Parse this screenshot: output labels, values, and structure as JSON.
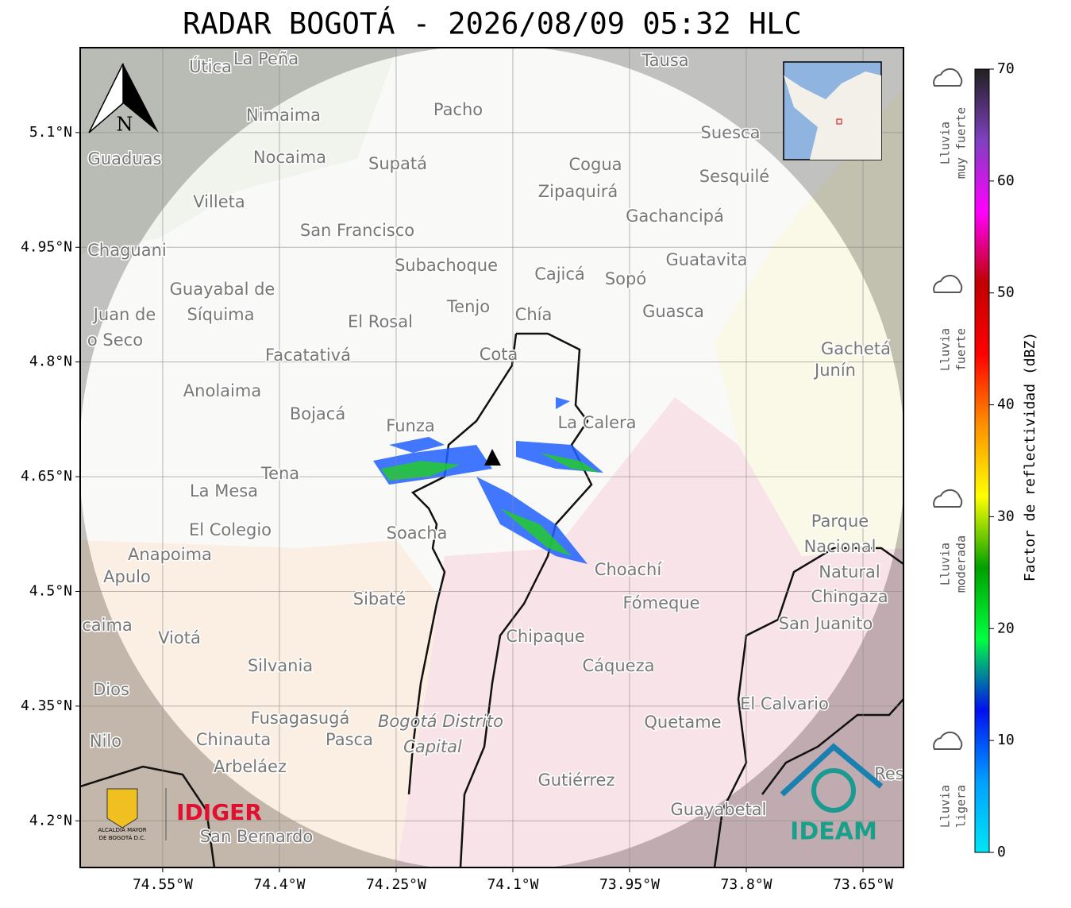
{
  "title": "RADAR BOGOTÁ - 2026/08/09 05:32 HLC",
  "map": {
    "xlim": [
      -74.656,
      -73.598
    ],
    "ylim": [
      4.139,
      5.211
    ],
    "xticks": [
      {
        "value": -74.55,
        "label": "74.55°W"
      },
      {
        "value": -74.4,
        "label": "74.4°W"
      },
      {
        "value": -74.25,
        "label": "74.25°W"
      },
      {
        "value": -74.1,
        "label": "74.1°W"
      },
      {
        "value": -73.95,
        "label": "73.95°W"
      },
      {
        "value": -73.8,
        "label": "73.8°W"
      },
      {
        "value": -73.65,
        "label": "73.65°W"
      }
    ],
    "yticks": [
      {
        "value": 5.1,
        "label": "5.1°N"
      },
      {
        "value": 4.95,
        "label": "4.95°N"
      },
      {
        "value": 4.8,
        "label": "4.8°N"
      },
      {
        "value": 4.65,
        "label": "4.65°N"
      },
      {
        "value": 4.5,
        "label": "4.5°N"
      },
      {
        "value": 4.35,
        "label": "4.35°N"
      },
      {
        "value": 4.2,
        "label": "4.2°N"
      }
    ],
    "grid": true,
    "places": [
      "Útica",
      "La Peña",
      "Tausa",
      "Pacho",
      "Nimaima",
      "Guaduas",
      "Nocaima",
      "Supatá",
      "Cogua",
      "Suesca",
      "Sesquilé",
      "Zipaquirá",
      "Villeta",
      "Gachancipá",
      "San Francisco",
      "Chaguani",
      "Guatavita",
      "Subachoque",
      "Cajicá",
      "Sopó",
      "Guayabal de",
      "Síquima",
      "Juan de",
      "o Seco",
      "Tenjo",
      "Guasca",
      "Chía",
      "El Rosal",
      "Gachetá",
      "Junín",
      "Facatativá",
      "Cota",
      "Anolaima",
      "Bojacá",
      "Funza",
      "La Calera",
      "Tena",
      "La Mesa",
      "Parque",
      "Nacional",
      "Natural",
      "Chingaza",
      "El Colegio",
      "Soacha",
      "Anapoima",
      "Apulo",
      "Choachí",
      "Fómeque",
      "Sibaté",
      "San Juanito",
      "caima",
      "Viotá",
      "Chipaque",
      "Silvania",
      "Cáqueza",
      "Dios",
      "El Calvario",
      "Fusagasugá",
      "Quetame",
      "Nilo",
      "Chinauta",
      "Pasca",
      "Arbeláez",
      "Gutiérrez",
      "Guayabetal",
      "San Bernardo",
      "Bogotá Distrito",
      "Capital",
      "Res"
    ],
    "north": "N"
  },
  "colorbar": {
    "label": "Factor de reflectividad (dBZ)",
    "lim": [
      0,
      70
    ],
    "ticks": [
      0,
      10,
      20,
      30,
      40,
      50,
      60,
      70
    ],
    "colormap": [
      "#00e5f5",
      "#00a0ff",
      "#0010f0",
      "#00ff40",
      "#00a000",
      "#ffff00",
      "#ff9000",
      "#ff0000",
      "#c00000",
      "#ff00ff",
      "#8040c0",
      "#202020"
    ],
    "classes": [
      [
        "Lluvia",
        "muy fuerte"
      ],
      [
        "Lluvia",
        "fuerte"
      ],
      [
        "Lluvia",
        "moderada"
      ],
      [
        "Lluvia",
        "ligera"
      ]
    ]
  },
  "logos": {
    "alcaldia": [
      "ALCALDÍA MAYOR",
      "DE BOGOTÁ D.C."
    ],
    "idiger": "IDIGER",
    "ideam": "IDEAM"
  }
}
